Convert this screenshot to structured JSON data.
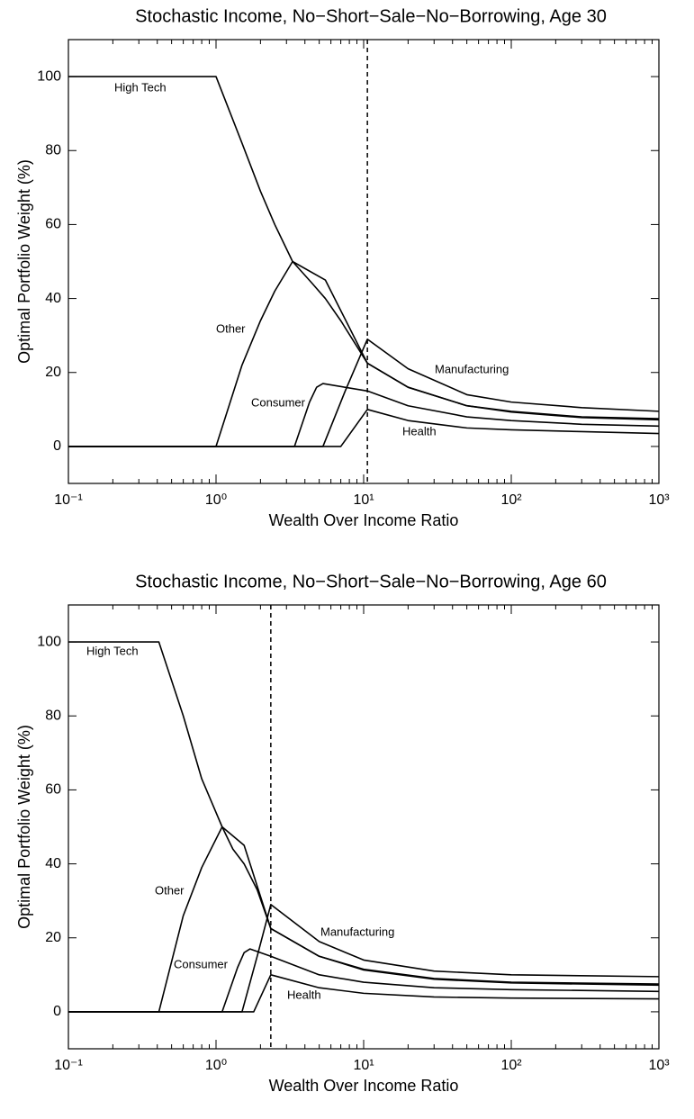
{
  "chart_data": [
    {
      "type": "line",
      "title": "Stochastic Income, No−Short−Sale−No−Borrowing, Age 30",
      "x_label": "Wealth Over Income Ratio",
      "y_label": "Optimal Portfolio Weight (%)",
      "log_x": true,
      "xlim": [
        0.1,
        1000
      ],
      "ylim": [
        -10,
        110
      ],
      "xticks": [
        {
          "value": 0.1,
          "label": "10⁻¹"
        },
        {
          "value": 1,
          "label": "10⁰"
        },
        {
          "value": 10,
          "label": "10¹"
        },
        {
          "value": 100,
          "label": "10²"
        },
        {
          "value": 1000,
          "label": "10³"
        }
      ],
      "yticks": [
        0,
        20,
        40,
        60,
        80,
        100
      ],
      "vline": 10.6,
      "series": [
        {
          "name": "High Tech",
          "color": "#000000",
          "x": [
            0.1,
            1,
            1.5,
            2,
            2.5,
            3.3,
            4.5,
            5.5,
            7,
            10.6,
            20,
            50,
            100,
            300,
            1000
          ],
          "values": [
            100,
            100,
            82,
            69,
            60,
            50,
            44,
            40,
            34,
            22.5,
            16,
            11,
            9.5,
            8,
            7.5
          ]
        },
        {
          "name": "Other",
          "color": "#000000",
          "x": [
            0.1,
            1,
            1.5,
            2,
            2.5,
            3.3,
            5.5,
            10.6,
            20,
            50,
            100,
            300,
            1000
          ],
          "values": [
            0,
            0,
            22,
            34,
            42,
            50,
            45,
            22.5,
            16,
            11,
            9.3,
            7.8,
            7.2
          ]
        },
        {
          "name": "Consumer",
          "color": "#000000",
          "x": [
            0.1,
            3.4,
            4.3,
            4.8,
            5.3,
            10.6,
            20,
            50,
            100,
            300,
            1000
          ],
          "values": [
            0,
            0,
            12,
            16,
            17,
            15,
            11,
            8,
            7,
            6,
            5.5
          ]
        },
        {
          "name": "Manufacturing",
          "color": "#000000",
          "x": [
            0.1,
            5.3,
            7.5,
            10.6,
            20,
            50,
            100,
            300,
            1000
          ],
          "values": [
            0,
            0,
            15,
            29,
            21,
            14,
            12,
            10.5,
            9.5
          ]
        },
        {
          "name": "Health",
          "color": "#000000",
          "x": [
            0.1,
            7,
            10.6,
            20,
            50,
            100,
            300,
            1000
          ],
          "values": [
            0,
            0,
            10,
            7,
            5,
            4.5,
            4,
            3.5
          ]
        }
      ]
    },
    {
      "type": "line",
      "title": "Stochastic Income, No−Short−Sale−No−Borrowing, Age 60",
      "x_label": "Wealth Over Income Ratio",
      "y_label": "Optimal Portfolio Weight (%)",
      "log_x": true,
      "xlim": [
        0.1,
        1000
      ],
      "ylim": [
        -10,
        110
      ],
      "xticks": [
        {
          "value": 0.1,
          "label": "10⁻¹"
        },
        {
          "value": 1,
          "label": "10⁰"
        },
        {
          "value": 10,
          "label": "10¹"
        },
        {
          "value": 100,
          "label": "10²"
        },
        {
          "value": 1000,
          "label": "10³"
        }
      ],
      "yticks": [
        0,
        20,
        40,
        60,
        80,
        100
      ],
      "vline": 2.35,
      "series": [
        {
          "name": "High Tech",
          "color": "#000000",
          "x": [
            0.1,
            0.41,
            0.6,
            0.8,
            1.1,
            1.3,
            1.55,
            1.9,
            2.35,
            5,
            10,
            30,
            100,
            1000
          ],
          "values": [
            100,
            100,
            80,
            63,
            50,
            44,
            40,
            33,
            22.5,
            15,
            11.5,
            9,
            8,
            7.5
          ]
        },
        {
          "name": "Other",
          "color": "#000000",
          "x": [
            0.1,
            0.41,
            0.6,
            0.8,
            1.1,
            1.55,
            2.35,
            5,
            10,
            30,
            100,
            1000
          ],
          "values": [
            0,
            0,
            26,
            39,
            50,
            45,
            22.5,
            15,
            11.3,
            8.8,
            7.8,
            7.2
          ]
        },
        {
          "name": "Consumer",
          "color": "#000000",
          "x": [
            0.1,
            1.1,
            1.4,
            1.55,
            1.7,
            2.35,
            5,
            10,
            30,
            100,
            1000
          ],
          "values": [
            0,
            0,
            12,
            16,
            17,
            15,
            10,
            8,
            6.5,
            6,
            5.5
          ]
        },
        {
          "name": "Manufacturing",
          "color": "#000000",
          "x": [
            0.1,
            1.5,
            1.9,
            2.35,
            5,
            10,
            30,
            100,
            1000
          ],
          "values": [
            0,
            0,
            15,
            29,
            19,
            14,
            11,
            10,
            9.5
          ]
        },
        {
          "name": "Health",
          "color": "#000000",
          "x": [
            0.1,
            1.8,
            2.35,
            5,
            10,
            30,
            100,
            1000
          ],
          "values": [
            0,
            0,
            10,
            6.5,
            5,
            4,
            3.7,
            3.5
          ]
        }
      ]
    }
  ]
}
